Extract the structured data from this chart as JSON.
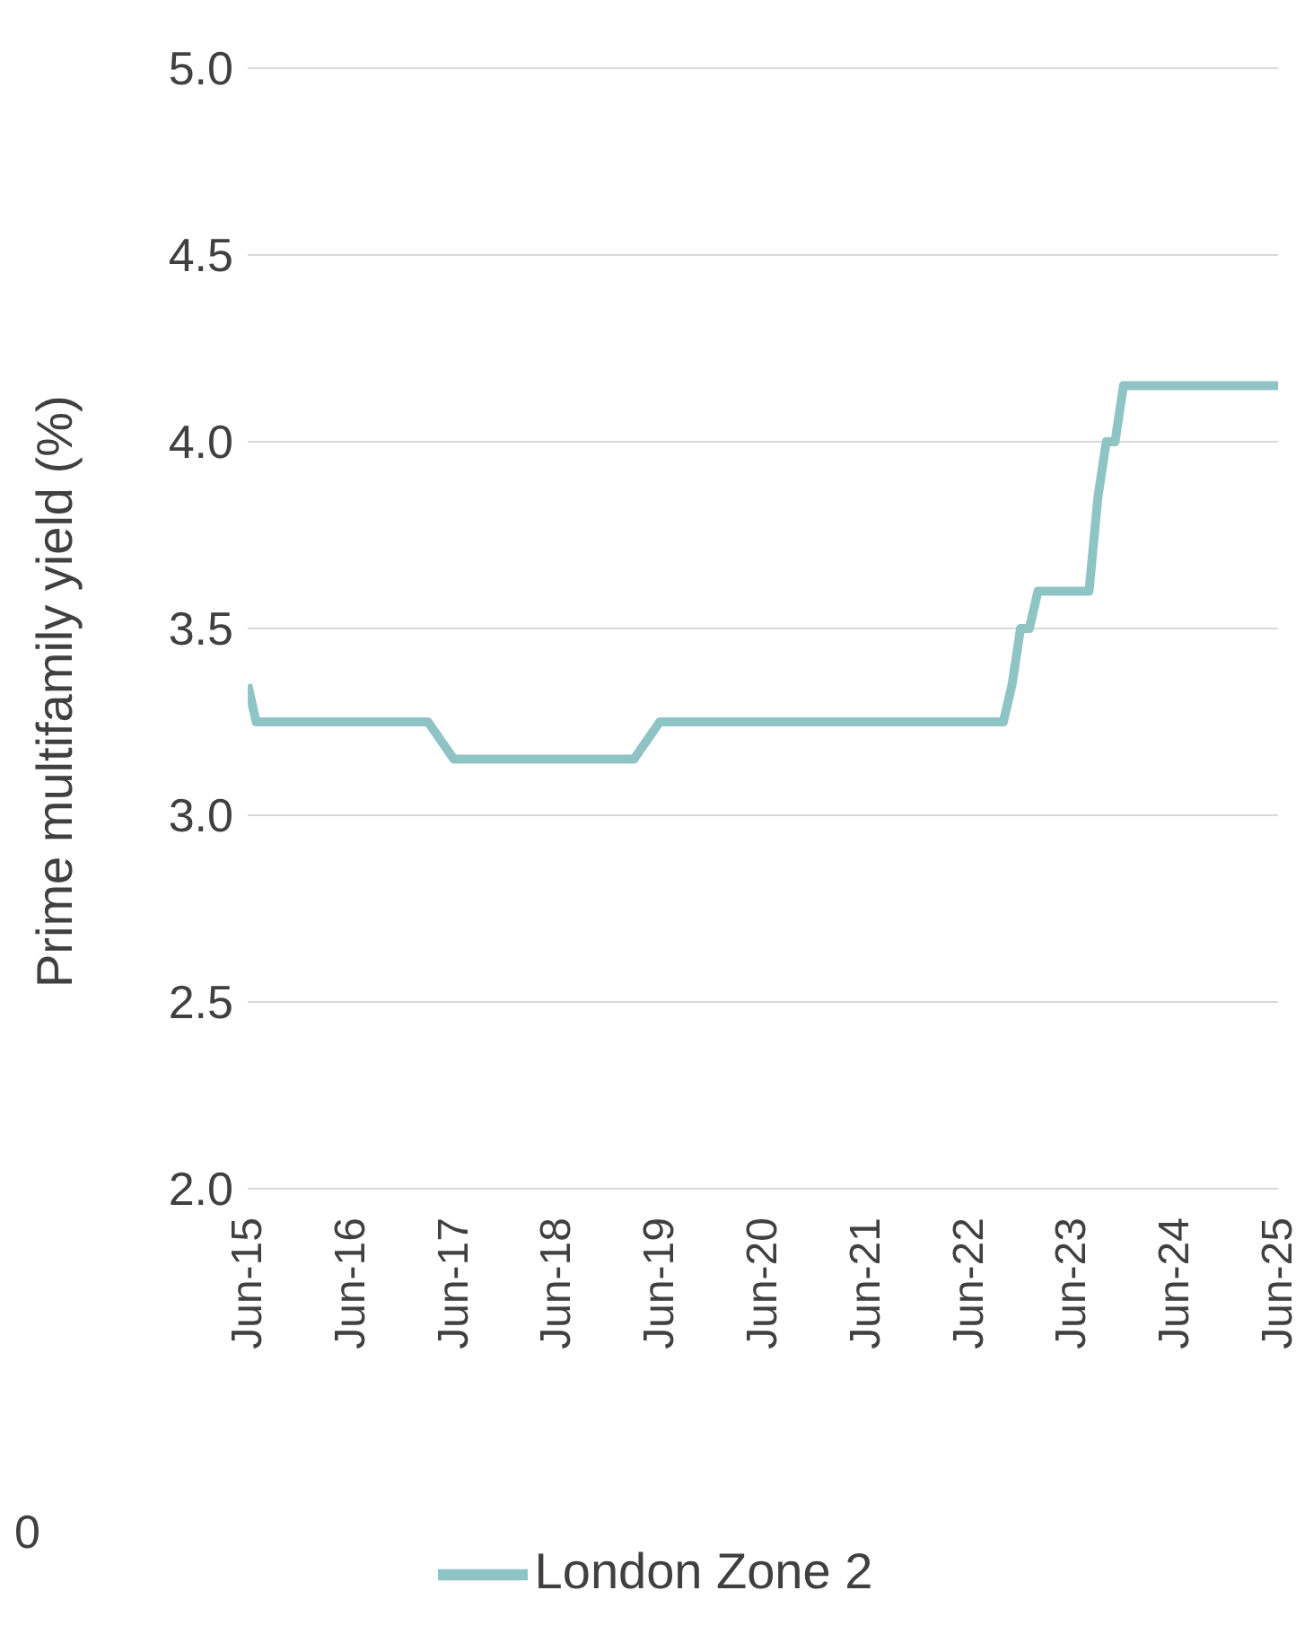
{
  "chart_data": {
    "type": "line",
    "ylabel": "Prime multifamily yield (%)",
    "x": [
      "2015-06",
      "2015-07",
      "2017-03",
      "2017-06",
      "2019-03",
      "2019-06",
      "2022-10",
      "2022-11",
      "2022-12",
      "2023-01",
      "2023-02",
      "2023-08",
      "2023-09",
      "2023-10",
      "2023-11",
      "2023-12",
      "2025-06"
    ],
    "series": [
      {
        "name": "London Zone 2",
        "color": "#8fc4c5",
        "values": [
          3.35,
          3.25,
          3.25,
          3.15,
          3.15,
          3.25,
          3.25,
          3.35,
          3.5,
          3.5,
          3.6,
          3.6,
          3.85,
          4.0,
          4.0,
          4.15,
          4.15
        ]
      }
    ],
    "xlim": [
      "2015-06",
      "2025-06"
    ],
    "xticks": [
      {
        "value": "2015-06",
        "label": "Jun-15"
      },
      {
        "value": "2016-06",
        "label": "Jun-16"
      },
      {
        "value": "2017-06",
        "label": "Jun-17"
      },
      {
        "value": "2018-06",
        "label": "Jun-18"
      },
      {
        "value": "2019-06",
        "label": "Jun-19"
      },
      {
        "value": "2020-06",
        "label": "Jun-20"
      },
      {
        "value": "2021-06",
        "label": "Jun-21"
      },
      {
        "value": "2022-06",
        "label": "Jun-22"
      },
      {
        "value": "2023-06",
        "label": "Jun-23"
      },
      {
        "value": "2024-06",
        "label": "Jun-24"
      },
      {
        "value": "2025-06",
        "label": "Jun-25"
      }
    ],
    "ylim": [
      2.0,
      5.0
    ],
    "yticks": [
      {
        "value": 2,
        "label": "2.0"
      },
      {
        "value": 2.5,
        "label": "2.5"
      },
      {
        "value": 3,
        "label": "3.0"
      },
      {
        "value": 3.5,
        "label": "3.5"
      },
      {
        "value": 4,
        "label": "4.0"
      },
      {
        "value": 4.5,
        "label": "4.5"
      },
      {
        "value": 5,
        "label": "5.0"
      }
    ],
    "grid": "y",
    "legend": "bottom",
    "marker": "none",
    "line_style": "solid",
    "annotations": [
      "0"
    ]
  }
}
